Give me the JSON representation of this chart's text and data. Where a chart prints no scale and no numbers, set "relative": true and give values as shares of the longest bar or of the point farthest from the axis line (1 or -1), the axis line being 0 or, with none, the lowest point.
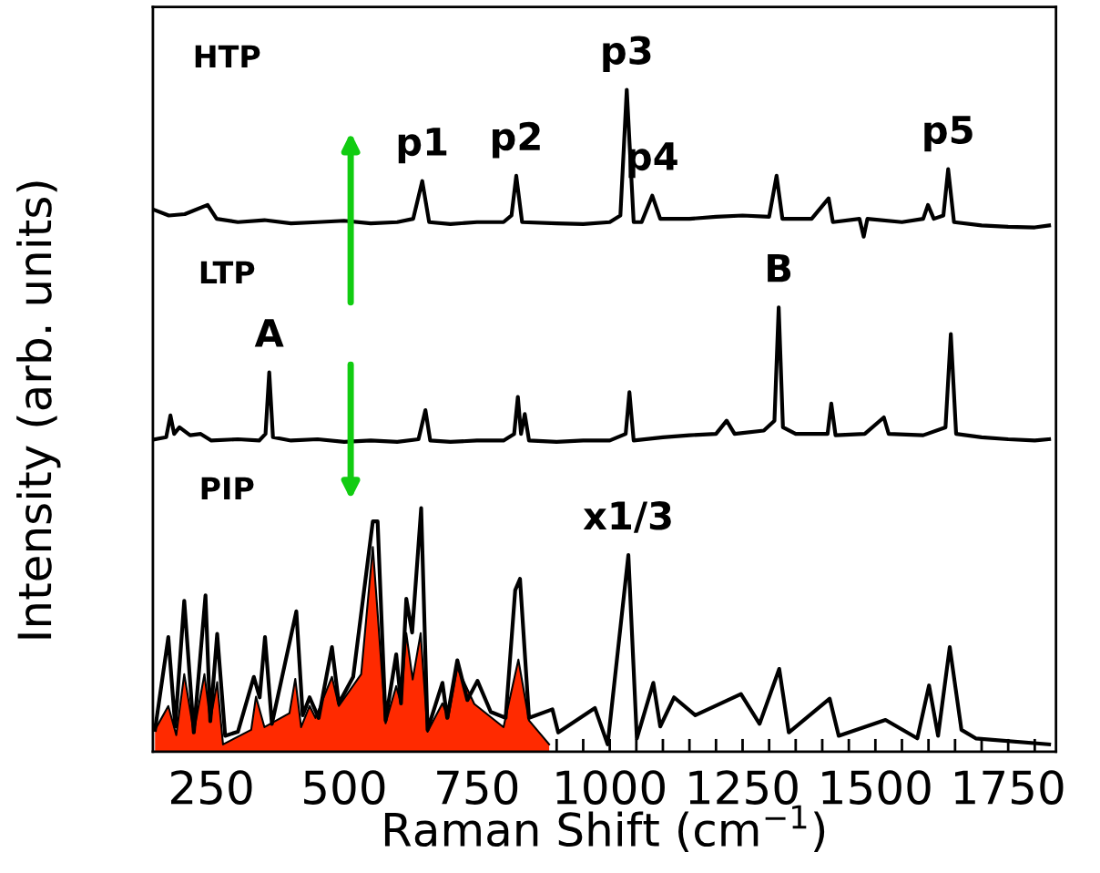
{
  "chart_data": {
    "type": "line",
    "relative": true,
    "xlabel": "Raman Shift (cm$^{−1}$)",
    "ylabel": "Intensity (arb. units)",
    "xlim": [
      140,
      1840
    ],
    "xticks": [
      {
        "value": 150,
        "label": null
      },
      {
        "value": 200,
        "label": null
      },
      250,
      {
        "value": 300,
        "label": null
      },
      {
        "value": 350,
        "label": null
      },
      {
        "value": 400,
        "label": null
      },
      {
        "value": 450,
        "label": null
      },
      500,
      {
        "value": 550,
        "label": null
      },
      {
        "value": 600,
        "label": null
      },
      {
        "value": 650,
        "label": null
      },
      {
        "value": 700,
        "label": null
      },
      750,
      {
        "value": 800,
        "label": null
      },
      {
        "value": 850,
        "label": null
      },
      {
        "value": 900,
        "label": null
      },
      {
        "value": 950,
        "label": null
      },
      1000,
      {
        "value": 1050,
        "label": null
      },
      {
        "value": 1100,
        "label": null
      },
      {
        "value": 1150,
        "label": null
      },
      {
        "value": 1200,
        "label": null
      },
      1250,
      {
        "value": 1300,
        "label": null
      },
      {
        "value": 1350,
        "label": null
      },
      {
        "value": 1400,
        "label": null
      },
      {
        "value": 1450,
        "label": null
      },
      1500,
      {
        "value": 1550,
        "label": null
      },
      {
        "value": 1600,
        "label": null
      },
      {
        "value": 1650,
        "label": null
      },
      {
        "value": 1700,
        "label": null
      },
      1750,
      {
        "value": 1800,
        "label": null
      }
    ],
    "grid": false,
    "marker": "none",
    "line_style": "solid",
    "series": [
      {
        "type": "area",
        "color": "#ff2a00",
        "x": [
          144,
          169,
          184,
          199,
          217,
          237,
          248,
          261,
          272,
          325,
          334,
          350,
          397,
          408,
          419,
          435,
          446,
          477,
          490,
          532,
          554,
          578,
          598,
          607,
          617,
          629,
          644,
          657,
          685,
          696,
          713,
          745,
          800,
          828,
          848,
          886
        ],
        "values": [
          0.033,
          0.069,
          0.025,
          0.117,
          0.029,
          0.117,
          0.047,
          0.105,
          0.011,
          0.033,
          0.083,
          0.037,
          0.058,
          0.11,
          0.037,
          0.069,
          0.051,
          0.113,
          0.069,
          0.117,
          0.309,
          0.043,
          0.099,
          0.073,
          0.179,
          0.109,
          0.179,
          0.03,
          0.073,
          0.051,
          0.127,
          0.072,
          0.037,
          0.139,
          0.047,
          0.011
        ]
      },
      {
        "color": "#000000",
        "x": [
          144,
          170,
          200,
          243,
          260,
          300,
          350,
          400,
          450,
          500,
          550,
          600,
          630,
          647,
          660,
          700,
          750,
          800,
          815,
          824,
          835,
          900,
          950,
          1000,
          1020,
          1032,
          1045,
          1060,
          1080,
          1095,
          1150,
          1200,
          1250,
          1300,
          1314,
          1325,
          1380,
          1412,
          1420,
          1470,
          1478,
          1485,
          1550,
          1590,
          1599,
          1610,
          1628,
          1637,
          1648,
          1700,
          1750,
          1800,
          1827
        ],
        "values": [
          0.818,
          0.81,
          0.812,
          0.826,
          0.805,
          0.8,
          0.803,
          0.798,
          0.8,
          0.802,
          0.798,
          0.8,
          0.805,
          0.862,
          0.8,
          0.797,
          0.8,
          0.8,
          0.81,
          0.87,
          0.8,
          0.798,
          0.797,
          0.8,
          0.81,
          1.0,
          0.8,
          0.8,
          0.84,
          0.805,
          0.805,
          0.808,
          0.81,
          0.808,
          0.87,
          0.805,
          0.805,
          0.836,
          0.8,
          0.805,
          0.778,
          0.805,
          0.8,
          0.805,
          0.826,
          0.805,
          0.81,
          0.88,
          0.8,
          0.795,
          0.793,
          0.792,
          0.795
        ]
      },
      {
        "color": "#000000",
        "x": [
          144,
          165,
          173,
          180,
          190,
          210,
          230,
          250,
          300,
          340,
          352,
          359,
          366,
          400,
          450,
          500,
          550,
          600,
          640,
          653,
          662,
          700,
          750,
          800,
          820,
          827,
          833,
          840,
          848,
          900,
          950,
          1000,
          1030,
          1037,
          1045,
          1100,
          1150,
          1200,
          1220,
          1235,
          1290,
          1310,
          1318,
          1326,
          1350,
          1410,
          1417,
          1425,
          1480,
          1516,
          1525,
          1590,
          1632,
          1642,
          1652,
          1700,
          1750,
          1800,
          1827
        ],
        "values": [
          0.472,
          0.475,
          0.508,
          0.48,
          0.49,
          0.478,
          0.48,
          0.47,
          0.472,
          0.47,
          0.48,
          0.573,
          0.475,
          0.47,
          0.472,
          0.468,
          0.47,
          0.468,
          0.472,
          0.516,
          0.47,
          0.468,
          0.47,
          0.47,
          0.48,
          0.536,
          0.48,
          0.51,
          0.47,
          0.468,
          0.47,
          0.47,
          0.48,
          0.543,
          0.47,
          0.475,
          0.478,
          0.48,
          0.5,
          0.48,
          0.485,
          0.5,
          0.671,
          0.49,
          0.48,
          0.48,
          0.526,
          0.478,
          0.48,
          0.505,
          0.48,
          0.478,
          0.49,
          0.631,
          0.48,
          0.475,
          0.472,
          0.47,
          0.472
        ]
      },
      {
        "color": "#000000",
        "x": [
          144,
          169,
          182,
          199,
          217,
          239,
          248,
          261,
          276,
          300,
          330,
          341,
          351,
          364,
          410,
          422,
          435,
          452,
          477,
          490,
          517,
          554,
          563,
          578,
          598,
          607,
          617,
          628,
          645,
          657,
          685,
          694,
          713,
          732,
          751,
          776,
          804,
          822,
          831,
          848,
          892,
          903,
          972,
          996,
          1035,
          1051,
          1082,
          1095,
          1121,
          1161,
          1247,
          1282,
          1319,
          1337,
          1414,
          1431,
          1519,
          1579,
          1601,
          1618,
          1640,
          1662,
          1689,
          1827
        ],
        "values": [
          0.033,
          0.173,
          0.038,
          0.228,
          0.029,
          0.236,
          0.046,
          0.178,
          0.024,
          0.03,
          0.113,
          0.082,
          0.173,
          0.042,
          0.212,
          0.055,
          0.082,
          0.051,
          0.158,
          0.073,
          0.113,
          0.348,
          0.348,
          0.047,
          0.147,
          0.073,
          0.231,
          0.18,
          0.368,
          0.033,
          0.104,
          0.051,
          0.138,
          0.078,
          0.107,
          0.06,
          0.051,
          0.244,
          0.261,
          0.051,
          0.064,
          0.029,
          0.066,
          0.011,
          0.297,
          0.02,
          0.104,
          0.038,
          0.082,
          0.055,
          0.087,
          0.042,
          0.125,
          0.029,
          0.08,
          0.024,
          0.048,
          0.02,
          0.1,
          0.024,
          0.158,
          0.033,
          0.02,
          0.011
        ]
      }
    ],
    "annotations": [
      "HTP",
      "LTP",
      "PIP",
      {
        "text": "p1",
        "x": 647,
        "y": 0.862
      },
      {
        "text": "p2",
        "x": 824,
        "y": 0.87
      },
      {
        "text": "p3",
        "x": 1032,
        "y": 1.0
      },
      {
        "text": "p4",
        "x": 1080,
        "y": 0.84
      },
      {
        "text": "p5",
        "x": 1637,
        "y": 0.88
      },
      {
        "text": "A",
        "x": 359,
        "y": 0.573
      },
      {
        "text": "B",
        "x": 1318,
        "y": 0.671
      },
      {
        "text": "x1/3",
        "x": 1035,
        "y": 0.297
      }
    ]
  }
}
